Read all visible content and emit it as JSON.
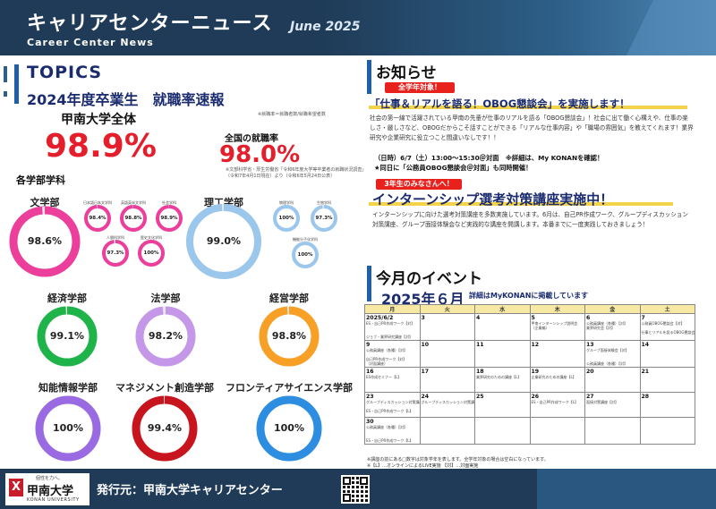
{
  "header": {
    "title": "キャリアセンターニュース",
    "subtitle": "Career Center News",
    "date": "June 2025"
  },
  "topics": {
    "heading": "TOPICS",
    "subheading": "2024年度卒業生　就職率速報",
    "university_label": "甲南大学全体",
    "university_note": "※就職率＝就職者数/就職希望者数",
    "university_rate": "98.9%",
    "national_label": "全国の就職率",
    "national_rate": "98.0%",
    "national_note_1": "※文部科学省・厚生労働省「令和6年度大学等卒業者の就職状況調査」",
    "national_note_2": "（令和7年4月1日現在）より（令和6年5月24日公表）",
    "departments_label": "各学部学科",
    "ring_color_ref": "#e6e6e6"
  },
  "faculties": [
    {
      "name": "文学部",
      "value": "98.6%",
      "pct": 98.6,
      "color": "#ec3f9b"
    },
    {
      "name": "理工学部",
      "value": "99.0%",
      "pct": 99.0,
      "color": "#9cc7ec"
    },
    {
      "name": "経済学部",
      "value": "99.1%",
      "pct": 99.1,
      "color": "#1fb44a"
    },
    {
      "name": "法学部",
      "value": "98.2%",
      "pct": 98.2,
      "color": "#c497e8"
    },
    {
      "name": "経営学部",
      "value": "98.8%",
      "pct": 98.8,
      "color": "#f7a025"
    },
    {
      "name": "知能情報学部",
      "value": "100%",
      "pct": 100,
      "color": "#9a6ae2"
    },
    {
      "name": "マネジメント創造学部",
      "value": "99.4%",
      "pct": 99.4,
      "color": "#c8151d"
    },
    {
      "name": "フロンティアサイエンス学部",
      "value": "100%",
      "pct": 100,
      "color": "#2d8de0"
    }
  ],
  "sub_departments": [
    {
      "name": "日本語日本文学科",
      "value": "98.4%",
      "pct": 98.4,
      "color": "#ec3f9b"
    },
    {
      "name": "英語英米文学科",
      "value": "98.8%",
      "pct": 98.8,
      "color": "#ec3f9b"
    },
    {
      "name": "社会学科",
      "value": "98.9%",
      "pct": 98.9,
      "color": "#ec3f9b"
    },
    {
      "name": "人間科学科",
      "value": "97.3%",
      "pct": 97.3,
      "color": "#ec3f9b"
    },
    {
      "name": "歴史文化学科",
      "value": "100%",
      "pct": 100,
      "color": "#ec3f9b"
    },
    {
      "name": "物理学科",
      "value": "100%",
      "pct": 100,
      "color": "#9cc7ec"
    },
    {
      "name": "生物学科",
      "value": "97.3%",
      "pct": 97.3,
      "color": "#9cc7ec"
    },
    {
      "name": "機能分子化学科",
      "value": "100%",
      "pct": 100,
      "color": "#9cc7ec"
    }
  ],
  "news": {
    "heading": "お知らせ",
    "item1": {
      "badge": "全学年対象！",
      "title": "「仕事＆リアルを語る！OBOG懇談会」を実施します！",
      "body": "社会の第一線で活躍されている甲南の先輩が仕事のリアルを語る「OBOG懇談会」！社会に出て働く心構えや、仕事の楽しさ・厳しさなど、OBOGだからこそ話すことができる「リアルな仕事内容」や「職場の雰囲気」を教えてくれます！業界研究や企業研究に役立つこと間違いなしです！！",
      "date_line": "（日時）6/7（土）13:00～15:30＠対面　※詳細は、My KONANを確認！",
      "extra_line": "★同日に「公務員OBOG懇談会＠対面」も同時開催！"
    },
    "item2": {
      "badge": "3年生のみなさんへ！",
      "title": "インターンシップ選考対策講座実施中！",
      "body": "インターンシップに向けた選考対策講座を多数実施しています。6月は、自己PR作成ワーク、グループディスカッション対策講座、グループ面接体験会など実践的な講座を開講します。本番までに一度実践しておきましょう！"
    }
  },
  "events": {
    "heading": "今月のイベント",
    "month_title": "2025年６月",
    "month_note": "詳細はMyKONANに掲載しています",
    "weekdays": [
      "月",
      "火",
      "水",
      "木",
      "金",
      "土"
    ],
    "weeks": [
      [
        {
          "day": "2025/6/2",
          "events": [
            "ES・自己PR作成ワーク【対】",
            "",
            "",
            "ジョブ・業界研究講座【対】"
          ]
        },
        {
          "day": "3",
          "events": []
        },
        {
          "day": "4",
          "events": [
            "",
            "",
            "",
            ""
          ]
        },
        {
          "day": "5",
          "events": [
            "甲南インターンシップ説明会",
            "（企業編）"
          ]
        },
        {
          "day": "6",
          "events": [
            "公務員講座（各種）【対】",
            "業界研究会【対】"
          ]
        },
        {
          "day": "7",
          "events": [
            "公務員OBOG懇談会【対】",
            "",
            "仕事とリアルを語るOBOG懇談会【対】"
          ]
        }
      ],
      [
        {
          "day": "9",
          "events": [
            "公務員講座（各種）【対】",
            "",
            "自己PR作成ワーク【対】",
            "（対面講座）"
          ]
        },
        {
          "day": "10",
          "events": []
        },
        {
          "day": "11",
          "events": []
        },
        {
          "day": "12",
          "events": []
        },
        {
          "day": "13",
          "events": [
            "グループ面接体験会【対】",
            "",
            "",
            "公務員講座（各種）【対】"
          ]
        },
        {
          "day": "14",
          "events": []
        }
      ],
      [
        {
          "day": "16",
          "events": [
            "ES作成セミナー【L】"
          ]
        },
        {
          "day": "17",
          "events": []
        },
        {
          "day": "18",
          "events": [
            "業界研究のための講座【L】"
          ]
        },
        {
          "day": "19",
          "events": [
            "企業研究のための講座【L】"
          ]
        },
        {
          "day": "20",
          "events": []
        },
        {
          "day": "21",
          "events": []
        }
      ],
      [
        {
          "day": "23",
          "events": [
            "グループディスカッション対策講座【L】",
            "",
            "ES・自己PR作成ワーク【L】"
          ]
        },
        {
          "day": "24",
          "events": [
            "グループディスカッション対策講座【対】"
          ]
        },
        {
          "day": "25",
          "events": []
        },
        {
          "day": "26",
          "events": [
            "ES・自己PR作成ワーク【L】"
          ]
        },
        {
          "day": "27",
          "events": [
            "面接対策講座【対】"
          ]
        },
        {
          "day": "28",
          "events": []
        }
      ],
      [
        {
          "day": "30",
          "events": [
            "公務員講座（各種）【対】",
            "",
            "",
            "ES・自己PR作成ワーク【L】"
          ]
        },
        {
          "day": "",
          "events": []
        },
        {
          "day": "",
          "events": []
        },
        {
          "day": "",
          "events": []
        },
        {
          "day": "",
          "events": []
        },
        {
          "day": "",
          "events": []
        }
      ]
    ],
    "note1": "※講座の前にある□数字は対象学年を表します。全学年対象の場合は空白になっています。",
    "note2": "※【L】…オンラインによるLIVE実施 【対】…対面実施"
  },
  "footer": {
    "motto": "個性を力へ。",
    "logo_name": "甲南大学",
    "logo_en": "KONAN UNIVERSITY",
    "publisher": "発行元：甲南大学キャリアセンター"
  }
}
